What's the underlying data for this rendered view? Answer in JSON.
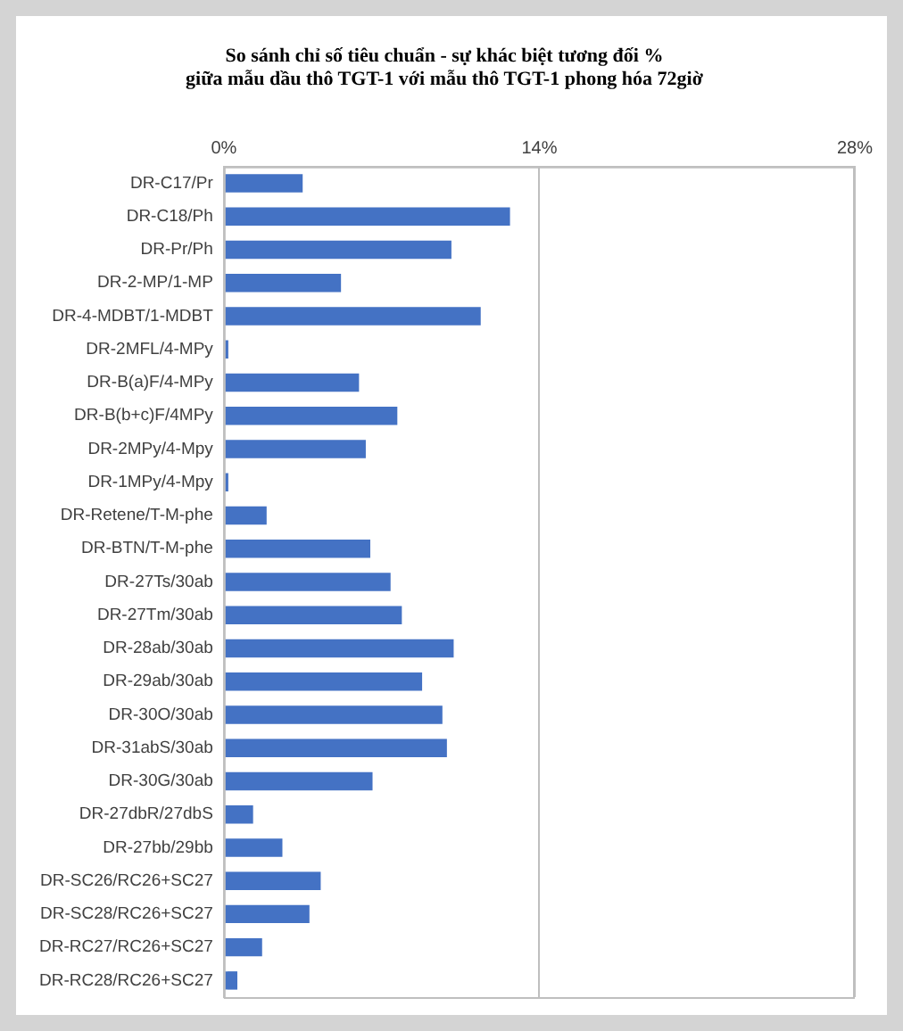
{
  "chart_data": {
    "type": "bar",
    "orientation": "horizontal",
    "title": "So sánh chỉ số tiêu chuẩn - sự khác biệt tương đối %\ngiữa mẫu dầu thô TGT-1 với mẫu thô TGT-1 phong hóa 72giờ",
    "categories": [
      "DR-C17/Pr",
      "DR-C18/Ph",
      "DR-Pr/Ph",
      "DR-2-MP/1-MP",
      "DR-4-MDBT/1-MDBT",
      "DR-2MFL/4-MPy",
      "DR-B(a)F/4-MPy",
      "DR-B(b+c)F/4MPy",
      "DR-2MPy/4-Mpy",
      "DR-1MPy/4-Mpy",
      "DR-Retene/T-M-phe",
      "DR-BTN/T-M-phe",
      "DR-27Ts/30ab",
      "DR-27Tm/30ab",
      "DR-28ab/30ab",
      "DR-29ab/30ab",
      "DR-30O/30ab",
      "DR-31abS/30ab",
      "DR-30G/30ab",
      "DR-27dbR/27dbS",
      "DR-27bb/29bb",
      "DR-SC26/RC26+SC27",
      "DR-SC28/RC26+SC27",
      "DR-RC27/RC26+SC27",
      "DR-RC28/RC26+SC27"
    ],
    "values": [
      3.5,
      12.7,
      10.1,
      5.2,
      11.4,
      0.2,
      6.0,
      7.7,
      6.3,
      0.2,
      1.9,
      6.5,
      7.4,
      7.9,
      10.2,
      8.8,
      9.7,
      9.9,
      6.6,
      1.3,
      2.6,
      4.3,
      3.8,
      1.7,
      0.6
    ],
    "color": "#4472c4",
    "xlim": [
      0,
      28
    ],
    "xticks": [
      {
        "value": 0,
        "label": "0%"
      },
      {
        "value": 14,
        "label": "14%"
      },
      {
        "value": 28,
        "label": "28%"
      }
    ],
    "grid": "x",
    "legend": false
  }
}
